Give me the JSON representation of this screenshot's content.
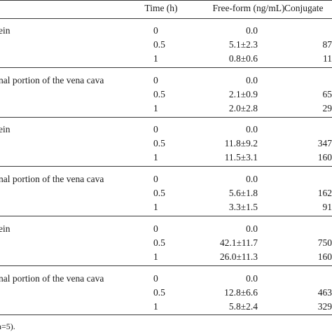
{
  "header": {
    "time": "Time (h)",
    "free": "Free-form (ng/mL)",
    "conj": "Conjugate"
  },
  "groups": [
    {
      "label": "ein",
      "rows": [
        {
          "time": "0",
          "free": "0.0",
          "conj": ""
        },
        {
          "time": "0.5",
          "free": "5.1±2.3",
          "conj": "87"
        },
        {
          "time": "1",
          "free": "0.8±0.6",
          "conj": "11"
        }
      ]
    },
    {
      "label": "nal portion of the vena cava",
      "rows": [
        {
          "time": "0",
          "free": "0.0",
          "conj": ""
        },
        {
          "time": "0.5",
          "free": "2.1±0.9",
          "conj": "65"
        },
        {
          "time": "1",
          "free": "2.0±2.8",
          "conj": "29"
        }
      ]
    },
    {
      "label": "ein",
      "rows": [
        {
          "time": "0",
          "free": "0.0",
          "conj": ""
        },
        {
          "time": "0.5",
          "free": "11.8±9.2",
          "conj": "347"
        },
        {
          "time": "1",
          "free": "11.5±3.1",
          "conj": "160"
        }
      ]
    },
    {
      "label": "nal portion of the vena cava",
      "rows": [
        {
          "time": "0",
          "free": "0.0",
          "conj": ""
        },
        {
          "time": "0.5",
          "free": "5.6±1.8",
          "conj": "162"
        },
        {
          "time": "1",
          "free": "3.3±1.5",
          "conj": "91"
        }
      ]
    },
    {
      "label": "ein",
      "rows": [
        {
          "time": "0",
          "free": "0.0",
          "conj": ""
        },
        {
          "time": "0.5",
          "free": "42.1±11.7",
          "conj": "750"
        },
        {
          "time": "1",
          "free": "26.0±11.3",
          "conj": "160"
        }
      ]
    },
    {
      "label": "nal portion of the vena cava",
      "rows": [
        {
          "time": "0",
          "free": "0.0",
          "conj": ""
        },
        {
          "time": "0.5",
          "free": "12.8±6.6",
          "conj": "463"
        },
        {
          "time": "1",
          "free": "5.8±2.4",
          "conj": "329"
        }
      ]
    }
  ],
  "footnote": "n=5)."
}
